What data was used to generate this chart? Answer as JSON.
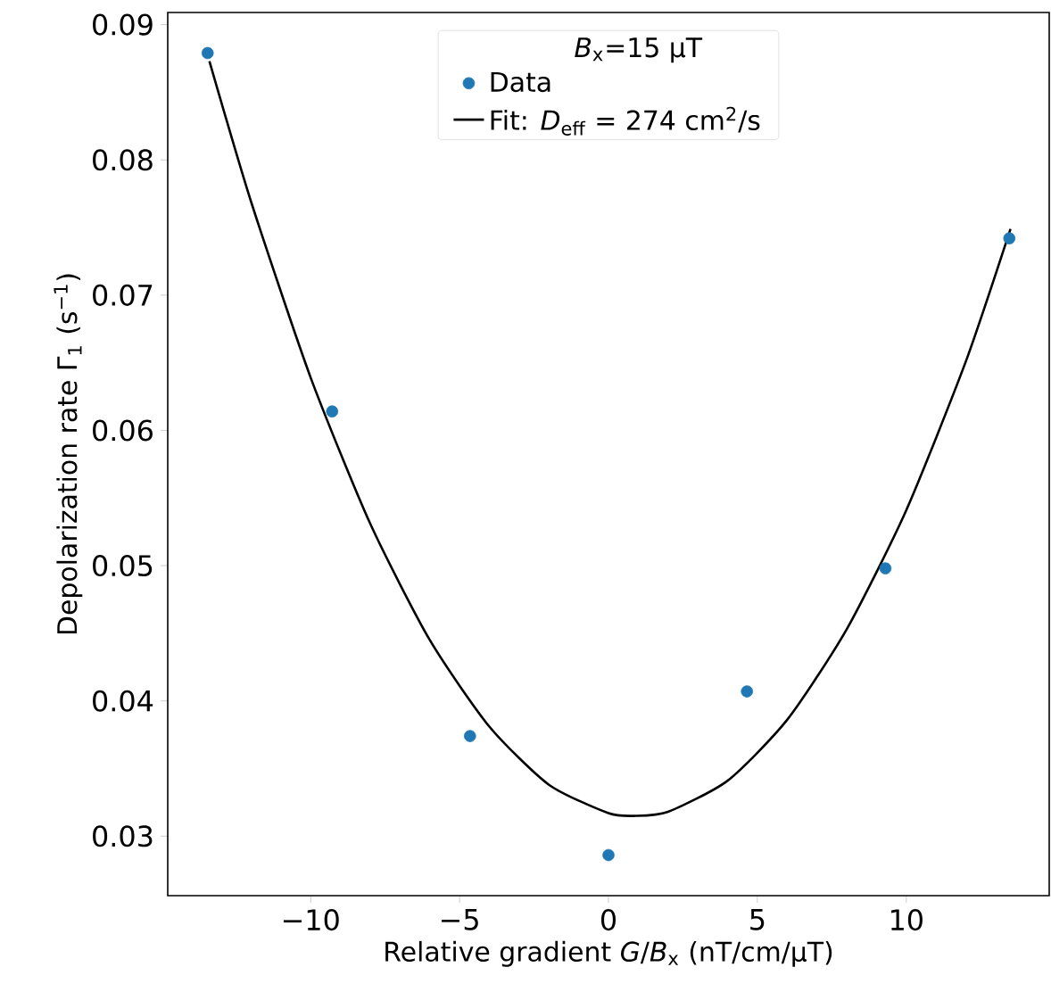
{
  "chart_data": {
    "type": "scatter",
    "xlabel": "Relative gradient *G*/*B*$_{x}$ (nT/cm/µT)",
    "ylabel": "Depolarization rate Γ$_{1}$ (s$^{−1}$)",
    "legend_title": "*B*$_{x}$=15 µT",
    "xlim": [
      -14.8,
      14.8
    ],
    "ylim": [
      0.0256,
      0.0909
    ],
    "xticks": [
      {
        "value": -10,
        "label": "−10"
      },
      {
        "value": -5,
        "label": "−5"
      },
      0,
      5,
      10
    ],
    "yticks": [
      0.03,
      0.04,
      0.05,
      0.06,
      0.07,
      0.08,
      0.09
    ],
    "legend": "top",
    "grid": false,
    "series": [
      {
        "name": "Data",
        "marker": "circle",
        "color": "#1f77b4",
        "x": [
          -13.46,
          -9.28,
          -4.65,
          0,
          4.65,
          9.3,
          13.46
        ],
        "values": [
          0.0879,
          0.0614,
          0.0374,
          0.0286,
          0.0407,
          0.0498,
          0.0742
        ]
      },
      {
        "name": "Fit: *D*$_{eff}$ = 274 cm$^{2}$/s",
        "type": "line",
        "marker": "none",
        "line_style": "solid",
        "color": "#000000",
        "x": [
          -13.4,
          -12,
          -10,
          -8,
          -6,
          -4,
          -2,
          0,
          0.9,
          2,
          4,
          6,
          8,
          10,
          12,
          13.5
        ],
        "values": [
          0.0873,
          0.0769,
          0.0639,
          0.0531,
          0.0445,
          0.0381,
          0.0338,
          0.0317,
          0.0315,
          0.0318,
          0.0341,
          0.0386,
          0.0453,
          0.0541,
          0.0651,
          0.0749
        ]
      }
    ]
  }
}
